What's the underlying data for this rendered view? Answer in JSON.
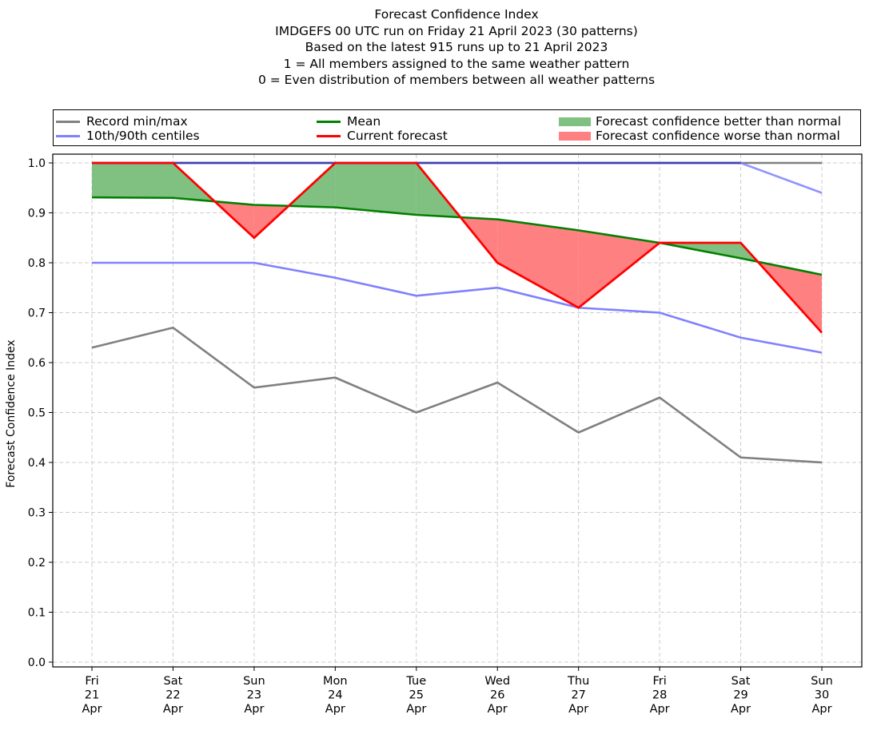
{
  "chart_data": {
    "type": "line",
    "title": "Forecast Confidence Index",
    "subtitle_lines": [
      "IMDGEFS 00 UTC run on Friday 21 April 2023 (30 patterns)",
      "Based on the latest 915 runs up to 21 April 2023",
      "1 = All members assigned to the same weather pattern",
      "0 = Even distribution of members between all weather patterns"
    ],
    "xlabel": "",
    "ylabel": "Forecast Confidence Index",
    "ylim": [
      -0.01,
      1.01
    ],
    "yticks": [
      "0.0",
      "0.1",
      "0.2",
      "0.3",
      "0.4",
      "0.5",
      "0.6",
      "0.7",
      "0.8",
      "0.9",
      "1.0"
    ],
    "ytick_values": [
      0,
      0.1,
      0.2,
      0.3,
      0.4,
      0.5,
      0.6,
      0.7,
      0.8,
      0.9,
      1.0
    ],
    "grid": true,
    "legend_position": "top, above plot",
    "categories": [
      [
        "Fri",
        "21",
        "Apr"
      ],
      [
        "Sat",
        "22",
        "Apr"
      ],
      [
        "Sun",
        "23",
        "Apr"
      ],
      [
        "Mon",
        "24",
        "Apr"
      ],
      [
        "Tue",
        "25",
        "Apr"
      ],
      [
        "Wed",
        "26",
        "Apr"
      ],
      [
        "Thu",
        "27",
        "Apr"
      ],
      [
        "Fri",
        "28",
        "Apr"
      ],
      [
        "Sat",
        "29",
        "Apr"
      ],
      [
        "Sun",
        "30",
        "Apr"
      ]
    ],
    "series": [
      {
        "name": "Record max",
        "legend": "Record min/max",
        "color": "#808080",
        "values": [
          1.0,
          1.0,
          1.0,
          1.0,
          1.0,
          1.0,
          1.0,
          1.0,
          1.0,
          1.0
        ]
      },
      {
        "name": "Record min",
        "legend": "Record min/max",
        "color": "#808080",
        "values": [
          0.63,
          0.67,
          0.55,
          0.57,
          0.5,
          0.56,
          0.46,
          0.53,
          0.41,
          0.4
        ]
      },
      {
        "name": "90th centile",
        "legend": "10th/90th centiles",
        "color": "#8080ff",
        "values": [
          1.0,
          1.0,
          1.0,
          1.0,
          1.0,
          1.0,
          1.0,
          1.0,
          1.0,
          0.94
        ]
      },
      {
        "name": "10th centile",
        "legend": "10th/90th centiles",
        "color": "#8080ff",
        "values": [
          0.8,
          0.8,
          0.8,
          0.77,
          0.734,
          0.75,
          0.71,
          0.7,
          0.65,
          0.62
        ]
      },
      {
        "name": "Mean",
        "legend": "Mean",
        "color": "#008000",
        "values": [
          0.931,
          0.93,
          0.916,
          0.911,
          0.896,
          0.887,
          0.865,
          0.84,
          0.809,
          0.776
        ]
      },
      {
        "name": "Current forecast",
        "legend": "Current forecast",
        "color": "#ff0000",
        "values": [
          1.0,
          1.0,
          0.85,
          1.0,
          1.0,
          0.8,
          0.71,
          0.84,
          0.84,
          0.66
        ]
      }
    ],
    "fills": [
      {
        "name": "Forecast confidence better than normal",
        "color": "#80c080",
        "condition": "current > mean"
      },
      {
        "name": "Forecast confidence worse than normal",
        "color": "#ff8080",
        "condition": "current < mean"
      }
    ]
  },
  "legend": {
    "items": [
      {
        "label": "Record min/max",
        "kind": "line",
        "color": "#808080"
      },
      {
        "label": "10th/90th centiles",
        "kind": "line",
        "color": "#8080ff"
      },
      {
        "label": "Mean",
        "kind": "line",
        "color": "#008000"
      },
      {
        "label": "Current forecast",
        "kind": "line",
        "color": "#ff0000"
      },
      {
        "label": "Forecast confidence better than normal",
        "kind": "patch",
        "color": "#80c080"
      },
      {
        "label": "Forecast confidence worse than normal",
        "kind": "patch",
        "color": "#ff8080"
      }
    ]
  }
}
